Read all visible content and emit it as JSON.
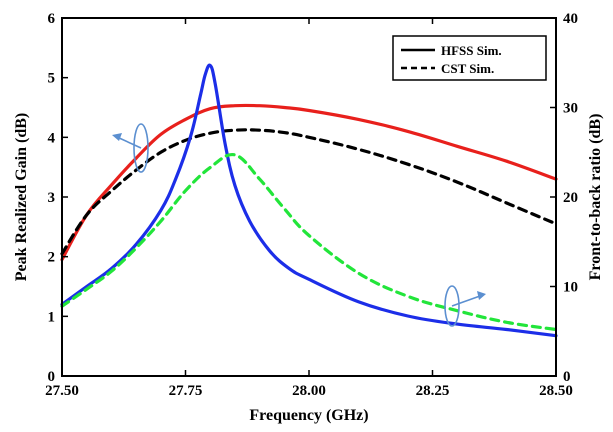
{
  "chart_data": {
    "type": "line",
    "xlabel": "Frequency (GHz)",
    "ylabel_left": "Peak Realized Gain (dB)",
    "ylabel_right": "Front-to-back ratio (dB)",
    "xlim": [
      27.5,
      28.5
    ],
    "ylim_left": [
      0,
      6
    ],
    "ylim_right": [
      0,
      40
    ],
    "x_ticks": [
      "27.50",
      "27.75",
      "28.00",
      "28.25",
      "28.50"
    ],
    "y_ticks_left": [
      "0",
      "1",
      "2",
      "3",
      "4",
      "5",
      "6"
    ],
    "y_ticks_right": [
      "0",
      "10",
      "20",
      "30",
      "40"
    ],
    "grid": false,
    "legend": {
      "position": "top-right",
      "entries": [
        {
          "label": "HFSS  Sim.",
          "style": "solid"
        },
        {
          "label": "CST  Sim.",
          "style": "dashed"
        }
      ]
    },
    "series": [
      {
        "axis": "left",
        "simulator": "HFSS",
        "color": "#e8201c",
        "dash": false,
        "x": [
          27.5,
          27.55,
          27.6,
          27.65,
          27.7,
          27.75,
          27.8,
          27.85,
          27.9,
          27.95,
          28.0,
          28.1,
          28.2,
          28.3,
          28.4,
          28.5
        ],
        "y": [
          1.95,
          2.7,
          3.2,
          3.65,
          4.05,
          4.3,
          4.48,
          4.53,
          4.53,
          4.5,
          4.45,
          4.3,
          4.1,
          3.85,
          3.6,
          3.3
        ]
      },
      {
        "axis": "left",
        "simulator": "CST",
        "color": "#000000",
        "dash": true,
        "x": [
          27.5,
          27.55,
          27.6,
          27.65,
          27.7,
          27.75,
          27.8,
          27.85,
          27.9,
          27.95,
          28.0,
          28.1,
          28.2,
          28.3,
          28.4,
          28.5
        ],
        "y": [
          2.05,
          2.7,
          3.1,
          3.45,
          3.75,
          3.95,
          4.07,
          4.12,
          4.12,
          4.08,
          4.0,
          3.8,
          3.55,
          3.25,
          2.9,
          2.55
        ]
      },
      {
        "axis": "right",
        "simulator": "HFSS",
        "color": "#1c2ee8",
        "dash": false,
        "x": [
          27.5,
          27.55,
          27.6,
          27.65,
          27.7,
          27.73,
          27.76,
          27.78,
          27.79,
          27.8,
          27.81,
          27.83,
          27.85,
          27.88,
          27.92,
          27.96,
          28.0,
          28.1,
          28.2,
          28.3,
          28.4,
          28.5
        ],
        "y": [
          8,
          10,
          12,
          14.7,
          18.5,
          22,
          26.7,
          31.3,
          33.7,
          34.7,
          32.7,
          26,
          21.3,
          17.3,
          14,
          12,
          10.8,
          8.3,
          6.7,
          5.8,
          5.2,
          4.5
        ]
      },
      {
        "axis": "right",
        "simulator": "CST",
        "color": "#22e53a",
        "dash": true,
        "x": [
          27.5,
          27.55,
          27.6,
          27.65,
          27.7,
          27.75,
          27.8,
          27.85,
          27.9,
          27.95,
          28.0,
          28.1,
          28.2,
          28.3,
          28.4,
          28.5
        ],
        "y": [
          7.8,
          9.7,
          11.7,
          14.3,
          17.3,
          20.7,
          23.3,
          24.7,
          22,
          18.7,
          15.7,
          11.5,
          8.9,
          7.3,
          6,
          5.2
        ]
      }
    ],
    "annotations": [
      {
        "type": "arrow",
        "direction": "left",
        "near_series": "HFSS left axis curve"
      },
      {
        "type": "arrow",
        "direction": "right",
        "near_series": "CST right axis curve"
      }
    ]
  }
}
